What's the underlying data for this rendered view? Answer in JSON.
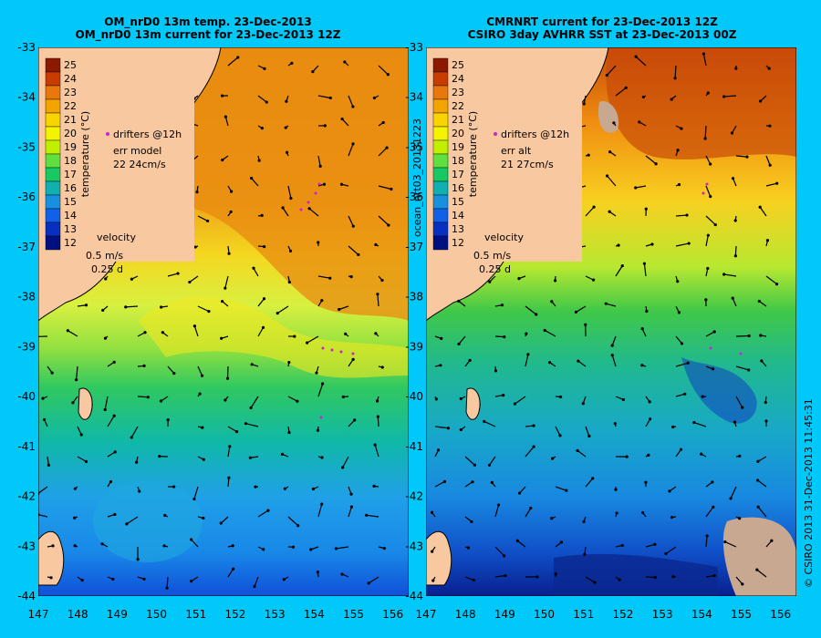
{
  "map_left": {
    "title_line1": "OM_nrD0 13m temp. 23-Dec-2013",
    "title_line2": "OM_nrD0 13m current for 23-Dec-2013 12Z",
    "legend": {
      "drifters": "drifters @12h",
      "err_label": "err model",
      "err_value": "22 24cm/s",
      "velocity_label": "velocity",
      "velocity_scale": "0.5 m/s",
      "time_scale": "0.25 d"
    }
  },
  "map_right": {
    "title_line1": "CMRNRT current for 23-Dec-2013 12Z",
    "title_line2": "CSIRO 3day AVHRR SST at 23-Dec-2013 00Z",
    "side_label": "ocean_nrt03_20131223",
    "legend": {
      "drifters": "drifters @12h",
      "err_label": "err alt",
      "err_value": "21 27cm/s",
      "velocity_label": "velocity",
      "velocity_scale": "0.5 m/s",
      "time_scale": "0.25 d"
    }
  },
  "colorbar": {
    "label": "temperature (°C)",
    "ticks": [
      "25",
      "24",
      "23",
      "22",
      "21",
      "20",
      "19",
      "18",
      "17",
      "16",
      "15",
      "14",
      "13",
      "12"
    ],
    "colors": [
      "#8b1a00",
      "#c83c00",
      "#e8780c",
      "#f4a400",
      "#f8d400",
      "#f4f400",
      "#c0f000",
      "#60e040",
      "#18c860",
      "#10b0b0",
      "#1890e0",
      "#1060e8",
      "#0830c0",
      "#001080"
    ]
  },
  "axes": {
    "x_ticks": [
      "147",
      "148",
      "149",
      "150",
      "151",
      "152",
      "153",
      "154",
      "155",
      "156"
    ],
    "y_ticks": [
      "-33",
      "-34",
      "-35",
      "-36",
      "-37",
      "-38",
      "-39",
      "-40",
      "-41",
      "-42",
      "-43",
      "-44"
    ]
  },
  "credit": "© CSIRO 2013   31-Dec-2013 11:45:31",
  "colors": {
    "background": "#00c8f8",
    "land": "#f8c8a0",
    "drifter": "#d020d0"
  }
}
